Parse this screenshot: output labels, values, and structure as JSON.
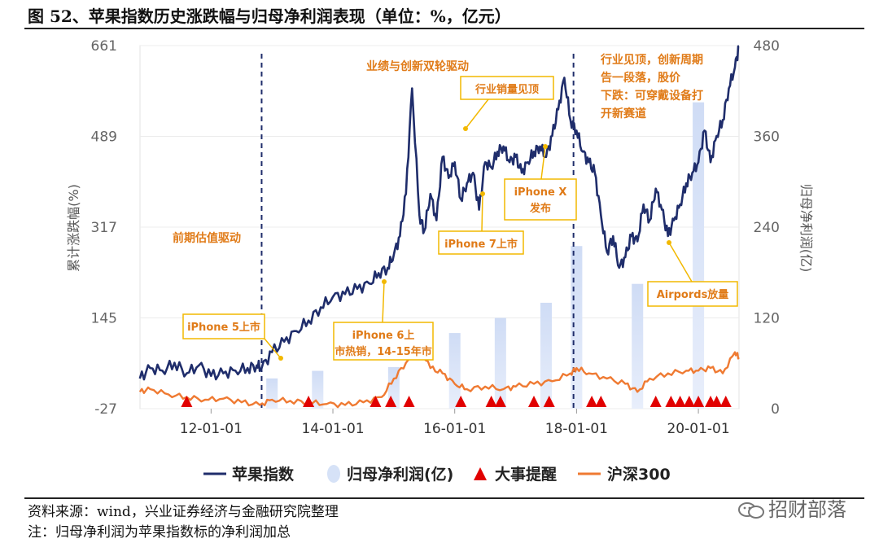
{
  "header": {
    "title": "图 52、苹果指数历史涨跌幅与归母净利润表现（单位：%，亿元）"
  },
  "footer": {
    "source": "资料来源：wind，兴业证券经济与金融研究院整理",
    "note": "注：归母净利润为苹果指数标的净利润加总",
    "watermark": "招财部落"
  },
  "colors": {
    "apple_index": "#1f2d6b",
    "net_profit": "#d6e2f7",
    "events": "#e10000",
    "hs300": "#ef7a32",
    "annotation_text": "#e07b18",
    "annotation_border": "#f2b800"
  },
  "chart_data": {
    "type": "line",
    "ylabel": "累计涨跌幅(%)",
    "y2label": "归母净利润(亿)",
    "ylim": [
      -27,
      661
    ],
    "y2lim": [
      0,
      480
    ],
    "yticks": [
      "661",
      "489",
      "317",
      "145",
      "-27"
    ],
    "y2ticks": [
      "480",
      "360",
      "240",
      "120",
      "0"
    ],
    "xticks": [
      "12-01-01",
      "14-01-01",
      "16-01-01",
      "18-01-01",
      "20-01-01"
    ],
    "xrange": [
      2010.833,
      2020.667
    ],
    "legend": [
      "苹果指数",
      "归母净利润(亿)",
      "大事提醒",
      "沪深300"
    ],
    "series": [
      {
        "name": "苹果指数",
        "axis": "left",
        "x": [
          2010.83,
          2011.0,
          2011.2,
          2011.4,
          2011.6,
          2011.8,
          2012.0,
          2012.2,
          2012.4,
          2012.6,
          2012.75,
          2012.83,
          2013.0,
          2013.2,
          2013.4,
          2013.6,
          2013.8,
          2014.0,
          2014.2,
          2014.4,
          2014.6,
          2014.75,
          2014.9,
          2015.0,
          2015.1,
          2015.2,
          2015.3,
          2015.42,
          2015.5,
          2015.6,
          2015.7,
          2015.8,
          2015.9,
          2016.0,
          2016.1,
          2016.2,
          2016.3,
          2016.4,
          2016.5,
          2016.6,
          2016.7,
          2016.8,
          2016.9,
          2017.0,
          2017.1,
          2017.2,
          2017.3,
          2017.4,
          2017.5,
          2017.6,
          2017.7,
          2017.8,
          2017.9,
          2018.0,
          2018.1,
          2018.2,
          2018.3,
          2018.4,
          2018.5,
          2018.6,
          2018.7,
          2018.8,
          2018.9,
          2019.0,
          2019.1,
          2019.2,
          2019.3,
          2019.4,
          2019.5,
          2019.6,
          2019.7,
          2019.8,
          2019.9,
          2020.0,
          2020.1,
          2020.2,
          2020.3,
          2020.4,
          2020.5,
          2020.6,
          2020.667
        ],
        "y": [
          30,
          50,
          45,
          60,
          40,
          55,
          35,
          40,
          45,
          50,
          55,
          50,
          80,
          100,
          120,
          140,
          165,
          185,
          190,
          200,
          210,
          230,
          240,
          265,
          300,
          380,
          580,
          340,
          310,
          380,
          330,
          450,
          410,
          440,
          370,
          400,
          420,
          350,
          440,
          430,
          460,
          470,
          440,
          450,
          420,
          440,
          460,
          470,
          450,
          490,
          540,
          600,
          520,
          500,
          460,
          440,
          420,
          340,
          270,
          300,
          240,
          260,
          300,
          290,
          360,
          330,
          390,
          350,
          300,
          330,
          360,
          400,
          420,
          440,
          500,
          440,
          490,
          520,
          580,
          620,
          660
        ]
      },
      {
        "name": "沪深300",
        "axis": "left",
        "x": [
          2010.83,
          2011.0,
          2011.3,
          2011.6,
          2011.9,
          2012.2,
          2012.5,
          2012.8,
          2013.0,
          2013.3,
          2013.6,
          2013.9,
          2014.2,
          2014.5,
          2014.8,
          2015.0,
          2015.2,
          2015.4,
          2015.6,
          2015.8,
          2016.0,
          2016.2,
          2016.5,
          2016.8,
          2017.0,
          2017.3,
          2017.6,
          2017.9,
          2018.0,
          2018.2,
          2018.5,
          2018.8,
          2019.0,
          2019.2,
          2019.5,
          2019.8,
          2020.0,
          2020.2,
          2020.4,
          2020.6,
          2020.667
        ],
        "y": [
          5,
          10,
          0,
          -5,
          -10,
          -8,
          -15,
          -20,
          -10,
          -12,
          -15,
          -18,
          -20,
          -15,
          -5,
          30,
          60,
          100,
          50,
          40,
          20,
          10,
          15,
          10,
          15,
          20,
          25,
          40,
          50,
          40,
          30,
          20,
          5,
          30,
          40,
          45,
          45,
          50,
          40,
          80,
          70
        ]
      },
      {
        "name": "归母净利润(亿)",
        "axis": "right",
        "type": "bar",
        "x": [
          2013.0,
          2013.75,
          2015.0,
          2016.0,
          2016.75,
          2017.5,
          2018.0,
          2019.0,
          2019.75,
          2020.0
        ],
        "values": [
          40,
          50,
          55,
          100,
          120,
          140,
          215,
          165,
          0,
          405
        ]
      }
    ],
    "events_x": [
      2011.6,
      2013.6,
      2014.7,
      2014.95,
      2015.25,
      2016.1,
      2016.6,
      2016.75,
      2017.3,
      2017.55,
      2018.25,
      2018.4,
      2019.3,
      2019.55,
      2019.7,
      2019.85,
      2020.0,
      2020.2,
      2020.3,
      2020.45
    ],
    "annotations": [
      {
        "text": "前期估值驱动",
        "boxed": false
      },
      {
        "text": "业绩与创新双轮驱动",
        "boxed": false
      },
      {
        "text": "行业见顶，创新周期告一段落，股价下跌：可穿戴设备打开新赛道",
        "boxed": false
      },
      {
        "text": "iPhone 5上市",
        "boxed": true
      },
      {
        "text": "iPhone 6上市热销，14-15年市",
        "boxed": true
      },
      {
        "text": "行业销量见顶",
        "boxed": true
      },
      {
        "text": "iPhone 7上市",
        "boxed": true
      },
      {
        "text": "iPhone X发布",
        "boxed": true
      },
      {
        "text": "Airpords放量",
        "boxed": true
      }
    ]
  }
}
